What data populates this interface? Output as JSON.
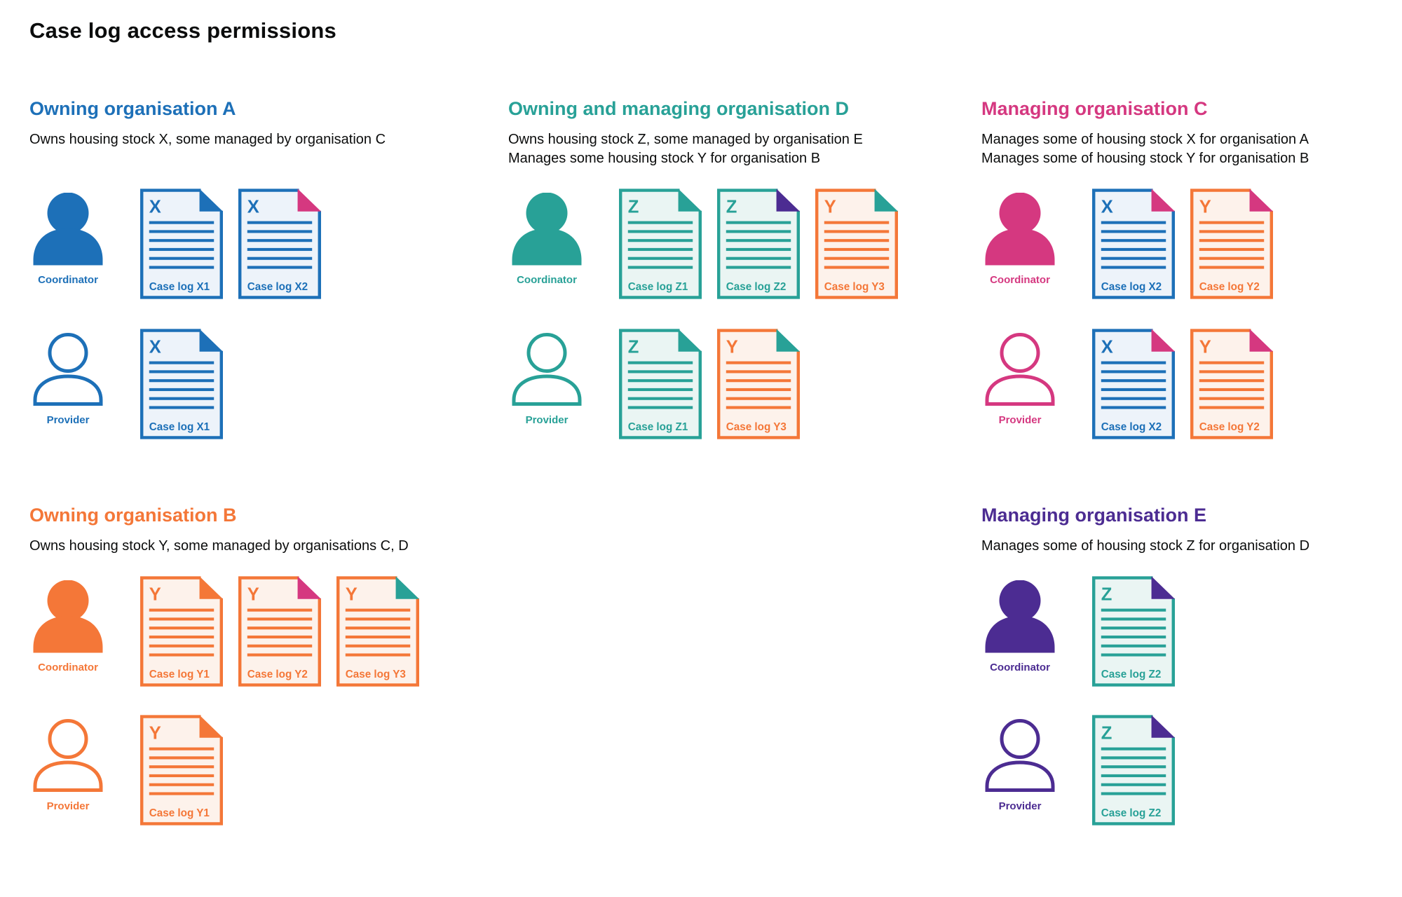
{
  "page": {
    "title": "Case log access permissions"
  },
  "colors": {
    "blue": "#1d70b8",
    "teal": "#28a197",
    "orange": "#f47738",
    "pink": "#d53880",
    "purple": "#4c2c92",
    "text": "#0b0c0c",
    "blue_fill": "#edf3fa",
    "teal_fill": "#eaf5f3",
    "orange_fill": "#fdf2eb"
  },
  "sections": [
    {
      "id": "org-a",
      "title": "Owning organisation A",
      "color": "blue",
      "description": [
        "Owns housing stock X, some managed by organisation C"
      ],
      "people": [
        {
          "role": "Coordinator",
          "icon": "filled",
          "docs": [
            {
              "letter": "X",
              "label": "Case log X1",
              "doc_color": "blue",
              "fold_color": "blue"
            },
            {
              "letter": "X",
              "label": "Case log X2",
              "doc_color": "blue",
              "fold_color": "pink"
            }
          ]
        },
        {
          "role": "Provider",
          "icon": "outline",
          "docs": [
            {
              "letter": "X",
              "label": "Case log X1",
              "doc_color": "blue",
              "fold_color": "blue"
            }
          ]
        }
      ]
    },
    {
      "id": "org-d",
      "title": "Owning and managing organisation D",
      "color": "teal",
      "description": [
        "Owns housing stock Z, some managed by organisation E",
        "Manages some housing stock Y for organisation B"
      ],
      "people": [
        {
          "role": "Coordinator",
          "icon": "filled",
          "docs": [
            {
              "letter": "Z",
              "label": "Case log Z1",
              "doc_color": "teal",
              "fold_color": "teal"
            },
            {
              "letter": "Z",
              "label": "Case log Z2",
              "doc_color": "teal",
              "fold_color": "purple"
            },
            {
              "letter": "Y",
              "label": "Case log Y3",
              "doc_color": "orange",
              "fold_color": "teal"
            }
          ]
        },
        {
          "role": "Provider",
          "icon": "outline",
          "docs": [
            {
              "letter": "Z",
              "label": "Case log Z1",
              "doc_color": "teal",
              "fold_color": "teal"
            },
            {
              "letter": "Y",
              "label": "Case log Y3",
              "doc_color": "orange",
              "fold_color": "teal"
            }
          ]
        }
      ]
    },
    {
      "id": "org-c",
      "title": "Managing organisation C",
      "color": "pink",
      "description": [
        "Manages some of housing stock X for organisation A",
        "Manages some of housing stock Y for organisation B"
      ],
      "people": [
        {
          "role": "Coordinator",
          "icon": "filled",
          "docs": [
            {
              "letter": "X",
              "label": "Case log X2",
              "doc_color": "blue",
              "fold_color": "pink"
            },
            {
              "letter": "Y",
              "label": "Case log Y2",
              "doc_color": "orange",
              "fold_color": "pink"
            }
          ]
        },
        {
          "role": "Provider",
          "icon": "outline",
          "docs": [
            {
              "letter": "X",
              "label": "Case log X2",
              "doc_color": "blue",
              "fold_color": "pink"
            },
            {
              "letter": "Y",
              "label": "Case log Y2",
              "doc_color": "orange",
              "fold_color": "pink"
            }
          ]
        }
      ]
    },
    {
      "id": "org-b",
      "title": "Owning organisation B",
      "color": "orange",
      "description": [
        "Owns housing stock Y, some managed by organisations C, D"
      ],
      "people": [
        {
          "role": "Coordinator",
          "icon": "filled",
          "docs": [
            {
              "letter": "Y",
              "label": "Case log Y1",
              "doc_color": "orange",
              "fold_color": "orange"
            },
            {
              "letter": "Y",
              "label": "Case log Y2",
              "doc_color": "orange",
              "fold_color": "pink"
            },
            {
              "letter": "Y",
              "label": "Case log Y3",
              "doc_color": "orange",
              "fold_color": "teal"
            }
          ]
        },
        {
          "role": "Provider",
          "icon": "outline",
          "docs": [
            {
              "letter": "Y",
              "label": "Case log Y1",
              "doc_color": "orange",
              "fold_color": "orange"
            }
          ]
        }
      ]
    },
    {
      "id": "org-e",
      "title": "Managing organisation E",
      "color": "purple",
      "description": [
        "Manages some of housing stock Z for organisation D"
      ],
      "people": [
        {
          "role": "Coordinator",
          "icon": "filled",
          "docs": [
            {
              "letter": "Z",
              "label": "Case log Z2",
              "doc_color": "teal",
              "fold_color": "purple"
            }
          ]
        },
        {
          "role": "Provider",
          "icon": "outline",
          "docs": [
            {
              "letter": "Z",
              "label": "Case log Z2",
              "doc_color": "teal",
              "fold_color": "purple"
            }
          ]
        }
      ]
    }
  ]
}
